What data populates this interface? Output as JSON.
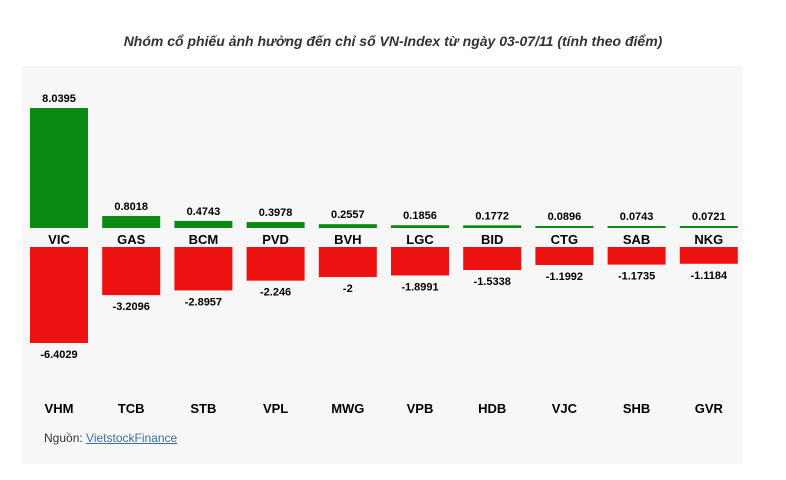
{
  "title": "Nhóm cổ phiếu ảnh hưởng đến chỉ số VN-Index từ ngày 03-07/11 (tính theo điểm)",
  "source": {
    "label": "Nguồn:",
    "link_text": "VietstockFinance"
  },
  "colors": {
    "positive": "#0b8a12",
    "negative": "#ee1111",
    "panel": "#f7f7f7",
    "text": "#000000"
  },
  "chart_data": {
    "type": "bar",
    "title": "Nhóm cổ phiếu ảnh hưởng đến chỉ số VN-Index từ ngày 03-07/11 (tính theo điểm)",
    "xlabel": "",
    "ylabel": "",
    "grid": false,
    "series": [
      {
        "name": "",
        "sign": "positive",
        "categories": [
          "VIC",
          "GAS",
          "BCM",
          "PVD",
          "BVH",
          "LGC",
          "BID",
          "CTG",
          "SAB",
          "NKG"
        ],
        "values": [
          8.0395,
          0.8018,
          0.4743,
          0.3978,
          0.2557,
          0.1856,
          0.1772,
          0.0896,
          0.0743,
          0.0721
        ]
      },
      {
        "name": "",
        "sign": "negative",
        "categories": [
          "VHM",
          "TCB",
          "STB",
          "VPL",
          "MWG",
          "VPB",
          "HDB",
          "VJC",
          "SHB",
          "GVR"
        ],
        "values": [
          -6.4029,
          -3.2096,
          -2.8957,
          -2.246,
          -2,
          -1.8991,
          -1.5338,
          -1.1992,
          -1.1735,
          -1.1184
        ]
      }
    ]
  }
}
